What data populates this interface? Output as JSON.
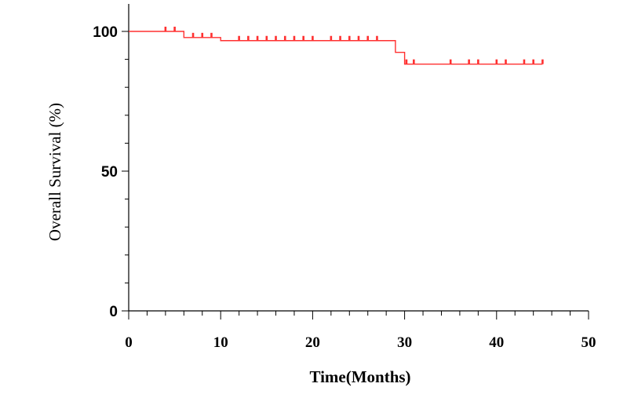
{
  "chart_data": {
    "type": "line",
    "xlabel": "Time(Months)",
    "ylabel": "Overall Survival (%)",
    "xlim": [
      0,
      50
    ],
    "ylim": [
      0,
      100
    ],
    "x_ticks": [
      "0",
      "10",
      "20",
      "30",
      "40",
      "50"
    ],
    "y_ticks": [
      "0",
      "50",
      "100"
    ],
    "grid": false,
    "color": "#ff3030",
    "series": [
      {
        "steps": [
          {
            "x": 0,
            "y": 100
          },
          {
            "x": 6,
            "y": 97.8
          },
          {
            "x": 10,
            "y": 96.7
          },
          {
            "x": 29,
            "y": 92.5
          },
          {
            "x": 30,
            "y": 88.3
          },
          {
            "x": 45,
            "y": 88.3
          }
        ],
        "censored": [
          {
            "x": 4,
            "y": 100
          },
          {
            "x": 5,
            "y": 100
          },
          {
            "x": 7,
            "y": 97.8
          },
          {
            "x": 8,
            "y": 97.8
          },
          {
            "x": 9,
            "y": 97.8
          },
          {
            "x": 12,
            "y": 96.7
          },
          {
            "x": 13,
            "y": 96.7
          },
          {
            "x": 14,
            "y": 96.7
          },
          {
            "x": 15,
            "y": 96.7
          },
          {
            "x": 16,
            "y": 96.7
          },
          {
            "x": 17,
            "y": 96.7
          },
          {
            "x": 18,
            "y": 96.7
          },
          {
            "x": 19,
            "y": 96.7
          },
          {
            "x": 20,
            "y": 96.7
          },
          {
            "x": 22,
            "y": 96.7
          },
          {
            "x": 23,
            "y": 96.7
          },
          {
            "x": 24,
            "y": 96.7
          },
          {
            "x": 25,
            "y": 96.7
          },
          {
            "x": 26,
            "y": 96.7
          },
          {
            "x": 27,
            "y": 96.7
          },
          {
            "x": 30.2,
            "y": 88.3
          },
          {
            "x": 31,
            "y": 88.3
          },
          {
            "x": 35,
            "y": 88.3
          },
          {
            "x": 37,
            "y": 88.3
          },
          {
            "x": 38,
            "y": 88.3
          },
          {
            "x": 40,
            "y": 88.3
          },
          {
            "x": 41,
            "y": 88.3
          },
          {
            "x": 43,
            "y": 88.3
          },
          {
            "x": 44,
            "y": 88.3
          },
          {
            "x": 45,
            "y": 88.3
          }
        ]
      }
    ]
  }
}
